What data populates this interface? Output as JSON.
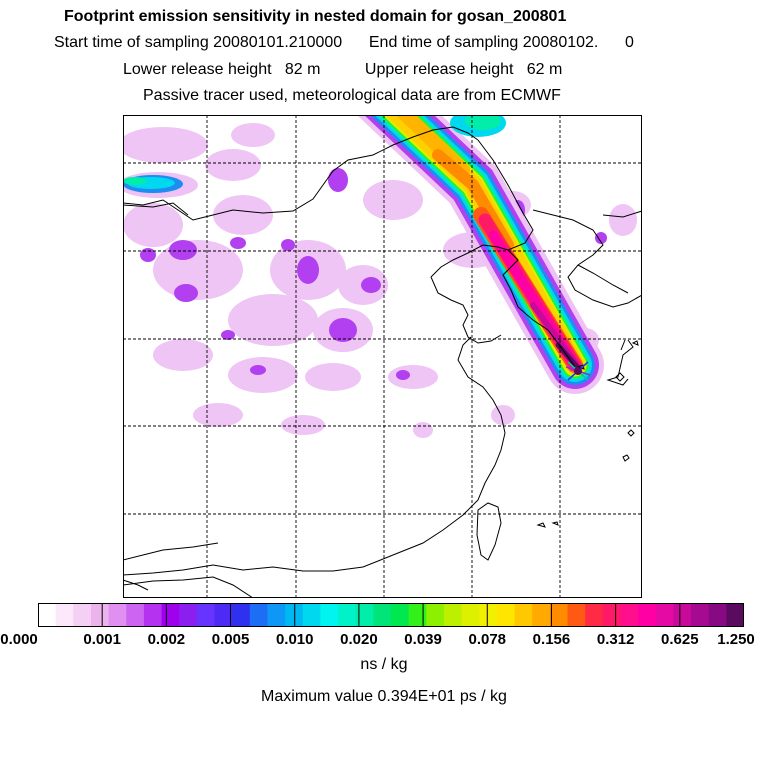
{
  "header": {
    "title": "Footprint emission sensitivity in nested domain for gosan_200801",
    "sampling_line": "Start time of sampling 20080101.210000      End time of sampling 20080102.      0",
    "release_line": "Lower release height   82 m          Upper release height   62 m",
    "tracer_line": "Passive tracer used, meteorological data are from ECMWF"
  },
  "colorbar": {
    "colors": [
      "#ffffff",
      "#fbe8fb",
      "#f4d0f4",
      "#ecb4ec",
      "#df90f0",
      "#cc66f2",
      "#b533f0",
      "#9f00ee",
      "#8a1ff0",
      "#6633ff",
      "#4d2bf5",
      "#3030f0",
      "#1e6ef5",
      "#0f97f5",
      "#00b8f2",
      "#00d8f0",
      "#00f5f0",
      "#00f2c8",
      "#00eeaa",
      "#00e47a",
      "#00e84d",
      "#33f01a",
      "#8cf000",
      "#bcf000",
      "#dcf000",
      "#f2f000",
      "#ffe600",
      "#ffc800",
      "#ffaa00",
      "#ff8c00",
      "#ff5a14",
      "#ff2a46",
      "#ff1966",
      "#ff0f8c",
      "#ff00a5",
      "#e60aa5",
      "#c80a9b",
      "#a50a91",
      "#870a82",
      "#5a0a5f"
    ],
    "tick_labels": [
      "0.000",
      "0.001",
      "0.002",
      "0.005",
      "0.010",
      "0.020",
      "0.039",
      "0.078",
      "0.156",
      "0.312",
      "0.625",
      "1.250"
    ],
    "units": "ns / kg"
  },
  "max_value_text": "Maximum value  0.394E+01 ps / kg",
  "receptor": "gosan"
}
